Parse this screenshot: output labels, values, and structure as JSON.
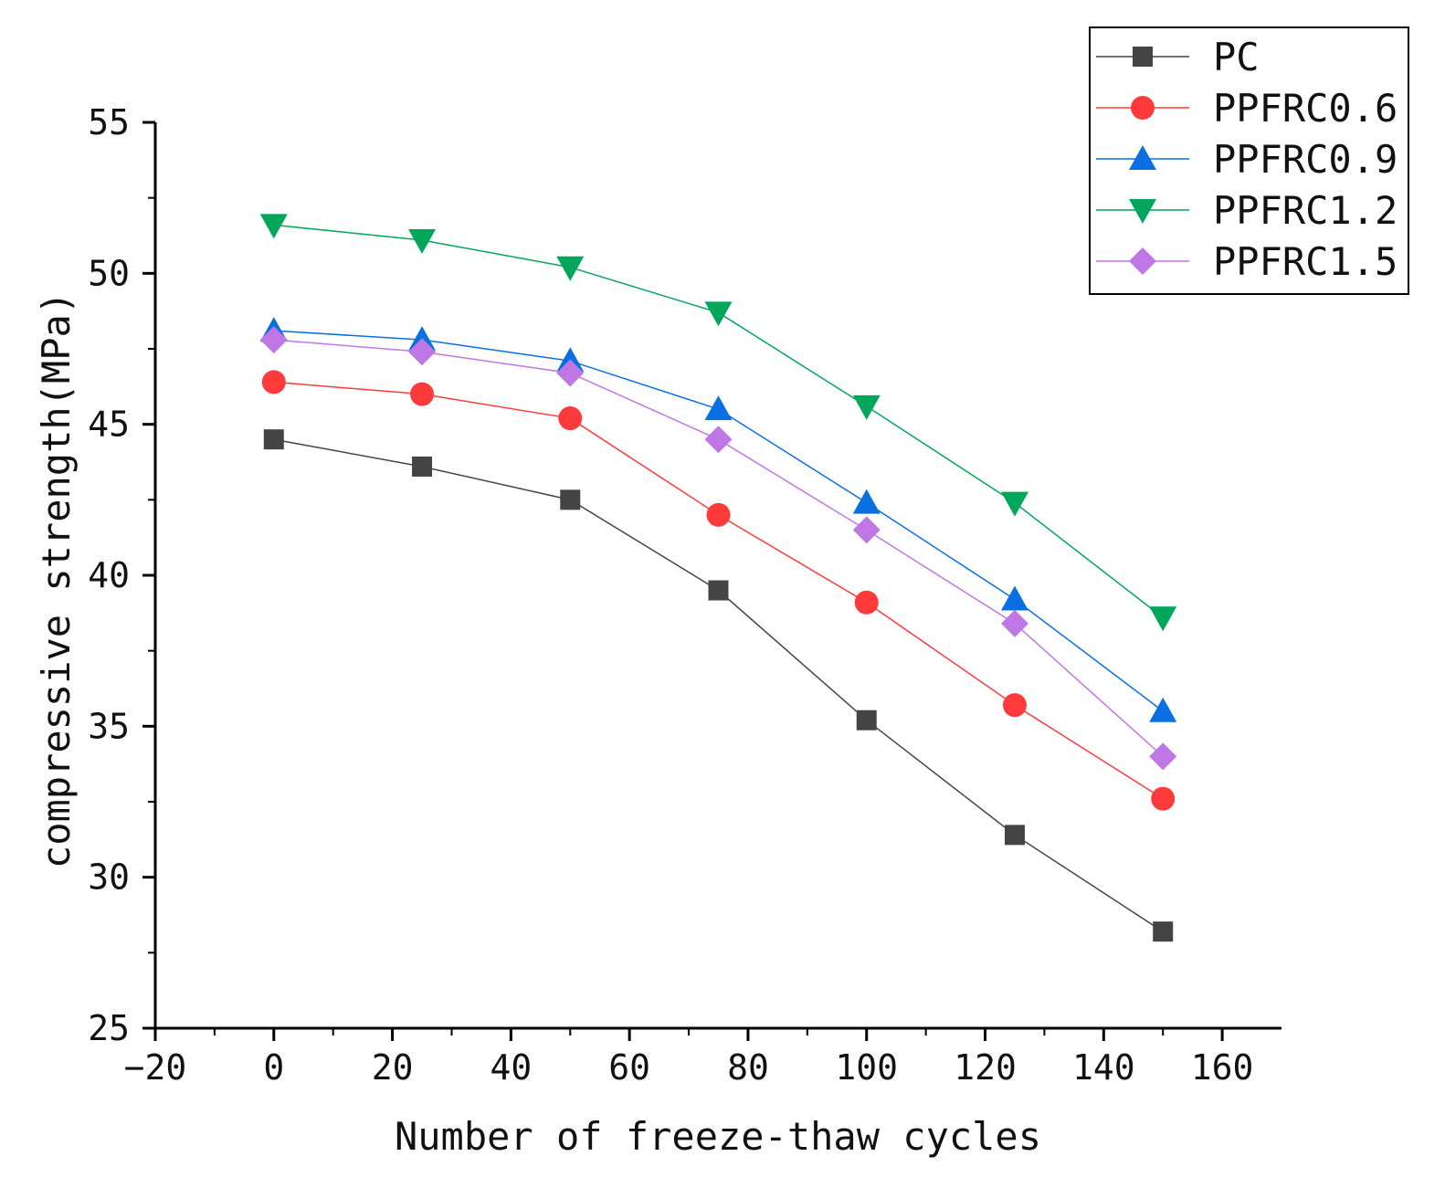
{
  "chart_data": {
    "type": "line",
    "title": "",
    "xlabel": "Number of freeze-thaw cycles",
    "ylabel": "compressive strength(MPa)",
    "xlim": [
      -20,
      170
    ],
    "ylim": [
      25,
      55
    ],
    "xticks": [
      -20,
      0,
      20,
      40,
      60,
      80,
      100,
      120,
      140,
      160
    ],
    "xtick_labels": [
      "−20",
      "0",
      "20",
      "40",
      "60",
      "80",
      "100",
      "120",
      "140",
      "160"
    ],
    "yticks": [
      25,
      30,
      35,
      40,
      45,
      50,
      55
    ],
    "ytick_labels": [
      "25",
      "30",
      "35",
      "40",
      "45",
      "50",
      "55"
    ],
    "grid": false,
    "legend_position": "top-right",
    "x": [
      0,
      25,
      50,
      75,
      100,
      125,
      150
    ],
    "series": [
      {
        "name": "PC",
        "marker": "square",
        "color": "#444444",
        "values": [
          44.5,
          43.6,
          42.5,
          39.5,
          35.2,
          31.4,
          28.2
        ]
      },
      {
        "name": "PPFRC0.6",
        "marker": "circle",
        "color": "#ff3a3a",
        "values": [
          46.4,
          46.0,
          45.2,
          42.0,
          39.1,
          35.7,
          32.6
        ]
      },
      {
        "name": "PPFRC0.9",
        "marker": "triangle-up",
        "color": "#0a6fe0",
        "values": [
          48.1,
          47.8,
          47.1,
          45.5,
          42.4,
          39.2,
          35.5
        ]
      },
      {
        "name": "PPFRC1.2",
        "marker": "triangle-down",
        "color": "#00a65a",
        "values": [
          51.6,
          51.1,
          50.2,
          48.7,
          45.6,
          42.4,
          38.6
        ]
      },
      {
        "name": "PPFRC1.5",
        "marker": "diamond",
        "color": "#c077e6",
        "values": [
          47.8,
          47.4,
          46.7,
          44.5,
          41.5,
          38.4,
          34.0
        ]
      }
    ]
  }
}
